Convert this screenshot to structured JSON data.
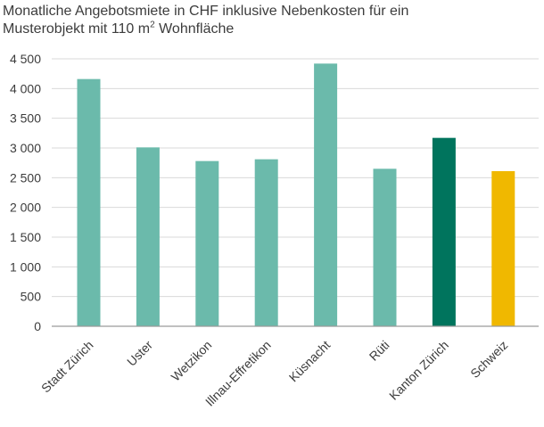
{
  "title_line1": "Monatliche Angebotsmiete in CHF inklusive Nebenkosten für ein",
  "title_line2_pre": "Musterobjekt mit 110 m",
  "title_line2_sup": "2",
  "title_line2_post": " Wohnfläche",
  "colors": {
    "default": "#6bbaab",
    "Kanton Zürich": "#00745d",
    "Schweiz": "#f0b800",
    "grid": "#d9d9d9",
    "axis": "#9a9a9a"
  },
  "chart_data": {
    "type": "bar",
    "categories": [
      "Stadt Zürich",
      "Uster",
      "Wetzikon",
      "Illnau-Effretikon",
      "Küsnacht",
      "Rüti",
      "Kanton Zürich",
      "Schweiz"
    ],
    "values": [
      4160,
      3010,
      2780,
      2810,
      4420,
      2650,
      3170,
      2610
    ],
    "ylim": [
      0,
      4500
    ],
    "yticks": [
      0,
      500,
      1000,
      1500,
      2000,
      2500,
      3000,
      3500,
      4000,
      4500
    ],
    "ytick_labels": [
      "0",
      "500",
      "1 000",
      "1 500",
      "2 000",
      "2 500",
      "3 000",
      "3 500",
      "4 000",
      "4 500"
    ],
    "grid": true,
    "legend": "none"
  }
}
